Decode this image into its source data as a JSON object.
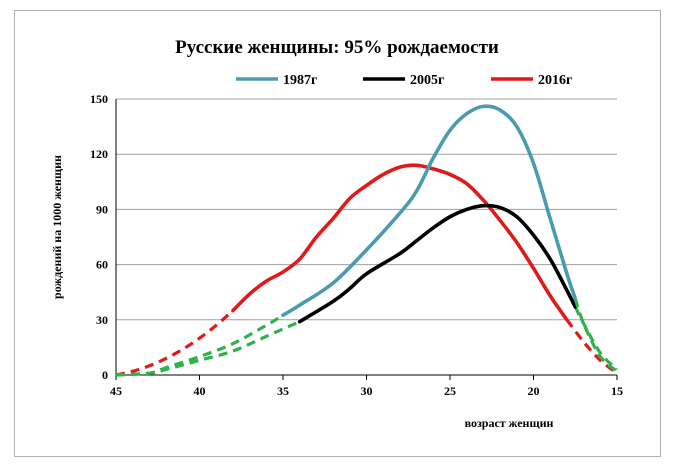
{
  "chart_data": {
    "type": "line",
    "title": "Русские женщины: 95%  рождаемости",
    "xlabel": "возраст женщин",
    "ylabel": "рождений на 1000 женщин",
    "xlim": [
      45,
      15
    ],
    "ylim": [
      0,
      150
    ],
    "xticks": [
      "45",
      "40",
      "35",
      "30",
      "25",
      "20",
      "15"
    ],
    "yticks": [
      "0",
      "30",
      "60",
      "90",
      "120",
      "150"
    ],
    "grid": "horizontal",
    "legend_position": "top",
    "series": [
      {
        "name": "1987г",
        "color": "#4a9bb0",
        "tail_color": "#2fb24a",
        "points": [
          [
            45,
            0
          ],
          [
            43,
            1
          ],
          [
            42,
            4
          ],
          [
            40,
            10
          ],
          [
            38,
            17
          ],
          [
            36,
            27
          ],
          [
            34,
            38
          ],
          [
            32,
            50
          ],
          [
            30,
            68
          ],
          [
            28,
            88
          ],
          [
            27,
            100
          ],
          [
            26,
            118
          ],
          [
            25,
            133
          ],
          [
            24,
            142
          ],
          [
            23,
            146
          ],
          [
            22,
            144
          ],
          [
            21,
            135
          ],
          [
            20,
            115
          ],
          [
            19,
            85
          ],
          [
            18,
            55
          ],
          [
            17,
            28
          ],
          [
            16,
            10
          ],
          [
            15,
            2
          ]
        ],
        "solid_from": 35,
        "solid_to": 17.5
      },
      {
        "name": "2005г",
        "color": "#000000",
        "tail_color": "#2fb24a",
        "points": [
          [
            45,
            0
          ],
          [
            43,
            1
          ],
          [
            42,
            3
          ],
          [
            40,
            8
          ],
          [
            38,
            13
          ],
          [
            36,
            21
          ],
          [
            34,
            29
          ],
          [
            32,
            40
          ],
          [
            31,
            47
          ],
          [
            30,
            55
          ],
          [
            28,
            66
          ],
          [
            27,
            73
          ],
          [
            26,
            80
          ],
          [
            25,
            86
          ],
          [
            24,
            90
          ],
          [
            23,
            92
          ],
          [
            22,
            91
          ],
          [
            21,
            86
          ],
          [
            20,
            76
          ],
          [
            19,
            63
          ],
          [
            18,
            46
          ],
          [
            17,
            28
          ],
          [
            16,
            12
          ],
          [
            15,
            3
          ]
        ],
        "solid_from": 34,
        "solid_to": 17.5
      },
      {
        "name": "2016г",
        "color": "#e0191b",
        "tail_color": "#e0191b",
        "points": [
          [
            45,
            0
          ],
          [
            44,
            2
          ],
          [
            43,
            5
          ],
          [
            42,
            9
          ],
          [
            41,
            14
          ],
          [
            40,
            20
          ],
          [
            39,
            27
          ],
          [
            38,
            35
          ],
          [
            37,
            44
          ],
          [
            36,
            51
          ],
          [
            35,
            56
          ],
          [
            34,
            63
          ],
          [
            33,
            75
          ],
          [
            32,
            85
          ],
          [
            31,
            96
          ],
          [
            30,
            103
          ],
          [
            29,
            109
          ],
          [
            28,
            113
          ],
          [
            27,
            114
          ],
          [
            26,
            112
          ],
          [
            25,
            109
          ],
          [
            24,
            104
          ],
          [
            23,
            95
          ],
          [
            22,
            84
          ],
          [
            21,
            72
          ],
          [
            20,
            58
          ],
          [
            19,
            43
          ],
          [
            18,
            30
          ],
          [
            17,
            18
          ],
          [
            16,
            8
          ],
          [
            15,
            1
          ]
        ],
        "solid_from": 38,
        "solid_to": 18
      }
    ]
  }
}
